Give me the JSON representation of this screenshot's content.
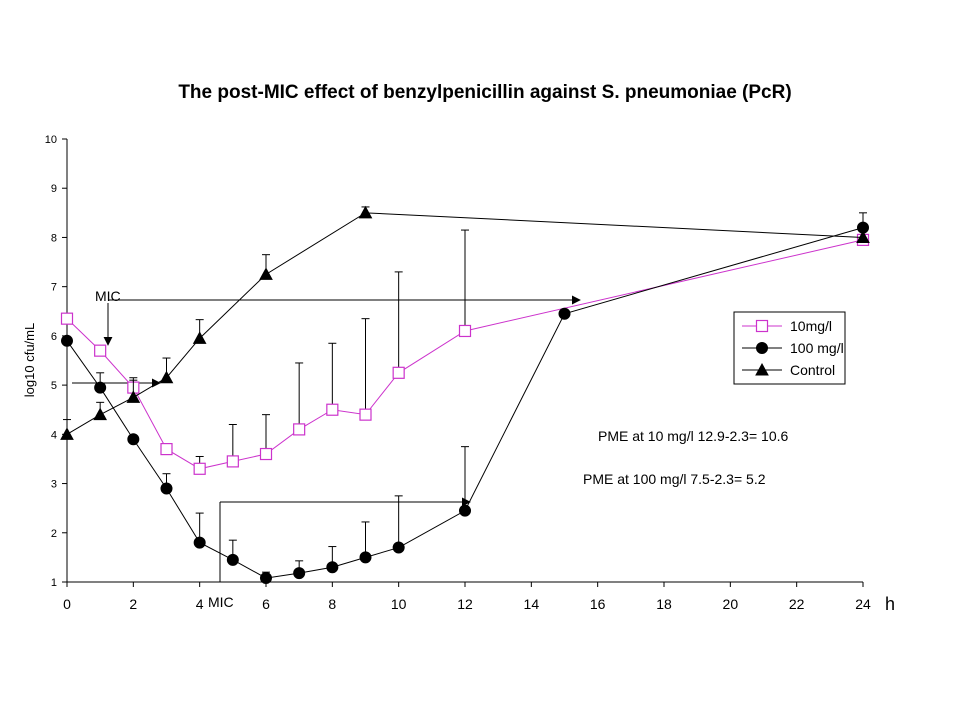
{
  "chart_data": {
    "type": "line",
    "title": "The post-MIC effect of benzylpenicillin against S. pneumoniae (PcR)",
    "ylabel": "log10 cfu/mL",
    "xlabel": "h",
    "xlim": [
      0,
      24
    ],
    "ylim": [
      1,
      10
    ],
    "x_ticks": [
      0,
      2,
      4,
      6,
      8,
      10,
      12,
      14,
      16,
      18,
      20,
      22,
      24
    ],
    "y_ticks": [
      1,
      2,
      3,
      4,
      5,
      6,
      7,
      8,
      9,
      10
    ],
    "legend_position": "right",
    "series": [
      {
        "name": "10mg/l",
        "color": "#cc33cc",
        "marker": "square-open",
        "x": [
          0,
          1,
          2,
          3,
          4,
          5,
          6,
          7,
          8,
          9,
          10,
          12,
          24
        ],
        "y": [
          6.35,
          5.7,
          4.95,
          3.7,
          3.3,
          3.45,
          3.6,
          4.1,
          4.5,
          4.4,
          5.25,
          6.1,
          7.95
        ],
        "err": [
          0,
          0,
          0.15,
          0,
          0.25,
          0.75,
          0.8,
          1.35,
          1.35,
          1.95,
          2.05,
          2.05,
          0
        ]
      },
      {
        "name": "100 mg/l",
        "color": "#000000",
        "marker": "circle-filled",
        "x": [
          0,
          1,
          2,
          3,
          4,
          5,
          6,
          7,
          8,
          9,
          10,
          12,
          15,
          24
        ],
        "y": [
          5.9,
          4.95,
          3.9,
          2.9,
          1.8,
          1.45,
          1.08,
          1.18,
          1.3,
          1.5,
          1.7,
          2.45,
          6.45,
          8.2
        ],
        "err": [
          0,
          0.3,
          0,
          0.3,
          0.6,
          0.4,
          0.12,
          0.25,
          0.42,
          0.72,
          1.05,
          1.3,
          0,
          0.3
        ]
      },
      {
        "name": "Control",
        "color": "#000000",
        "marker": "triangle-filled",
        "x": [
          0,
          1,
          2,
          3,
          4,
          6,
          9,
          24
        ],
        "y": [
          4.0,
          4.4,
          4.75,
          5.15,
          5.95,
          7.25,
          8.5,
          8.0
        ],
        "err": [
          0.3,
          0.25,
          0.4,
          0.4,
          0.38,
          0.4,
          0.12,
          0
        ]
      }
    ],
    "annotations": [
      {
        "text": "MIC"
      },
      {
        "text": "MIC"
      },
      {
        "text": "PME  at 10 mg/l 12.9-2.3= 10.6"
      },
      {
        "text": "PME at 100 mg/l 7.5-2.3= 5.2"
      }
    ]
  }
}
